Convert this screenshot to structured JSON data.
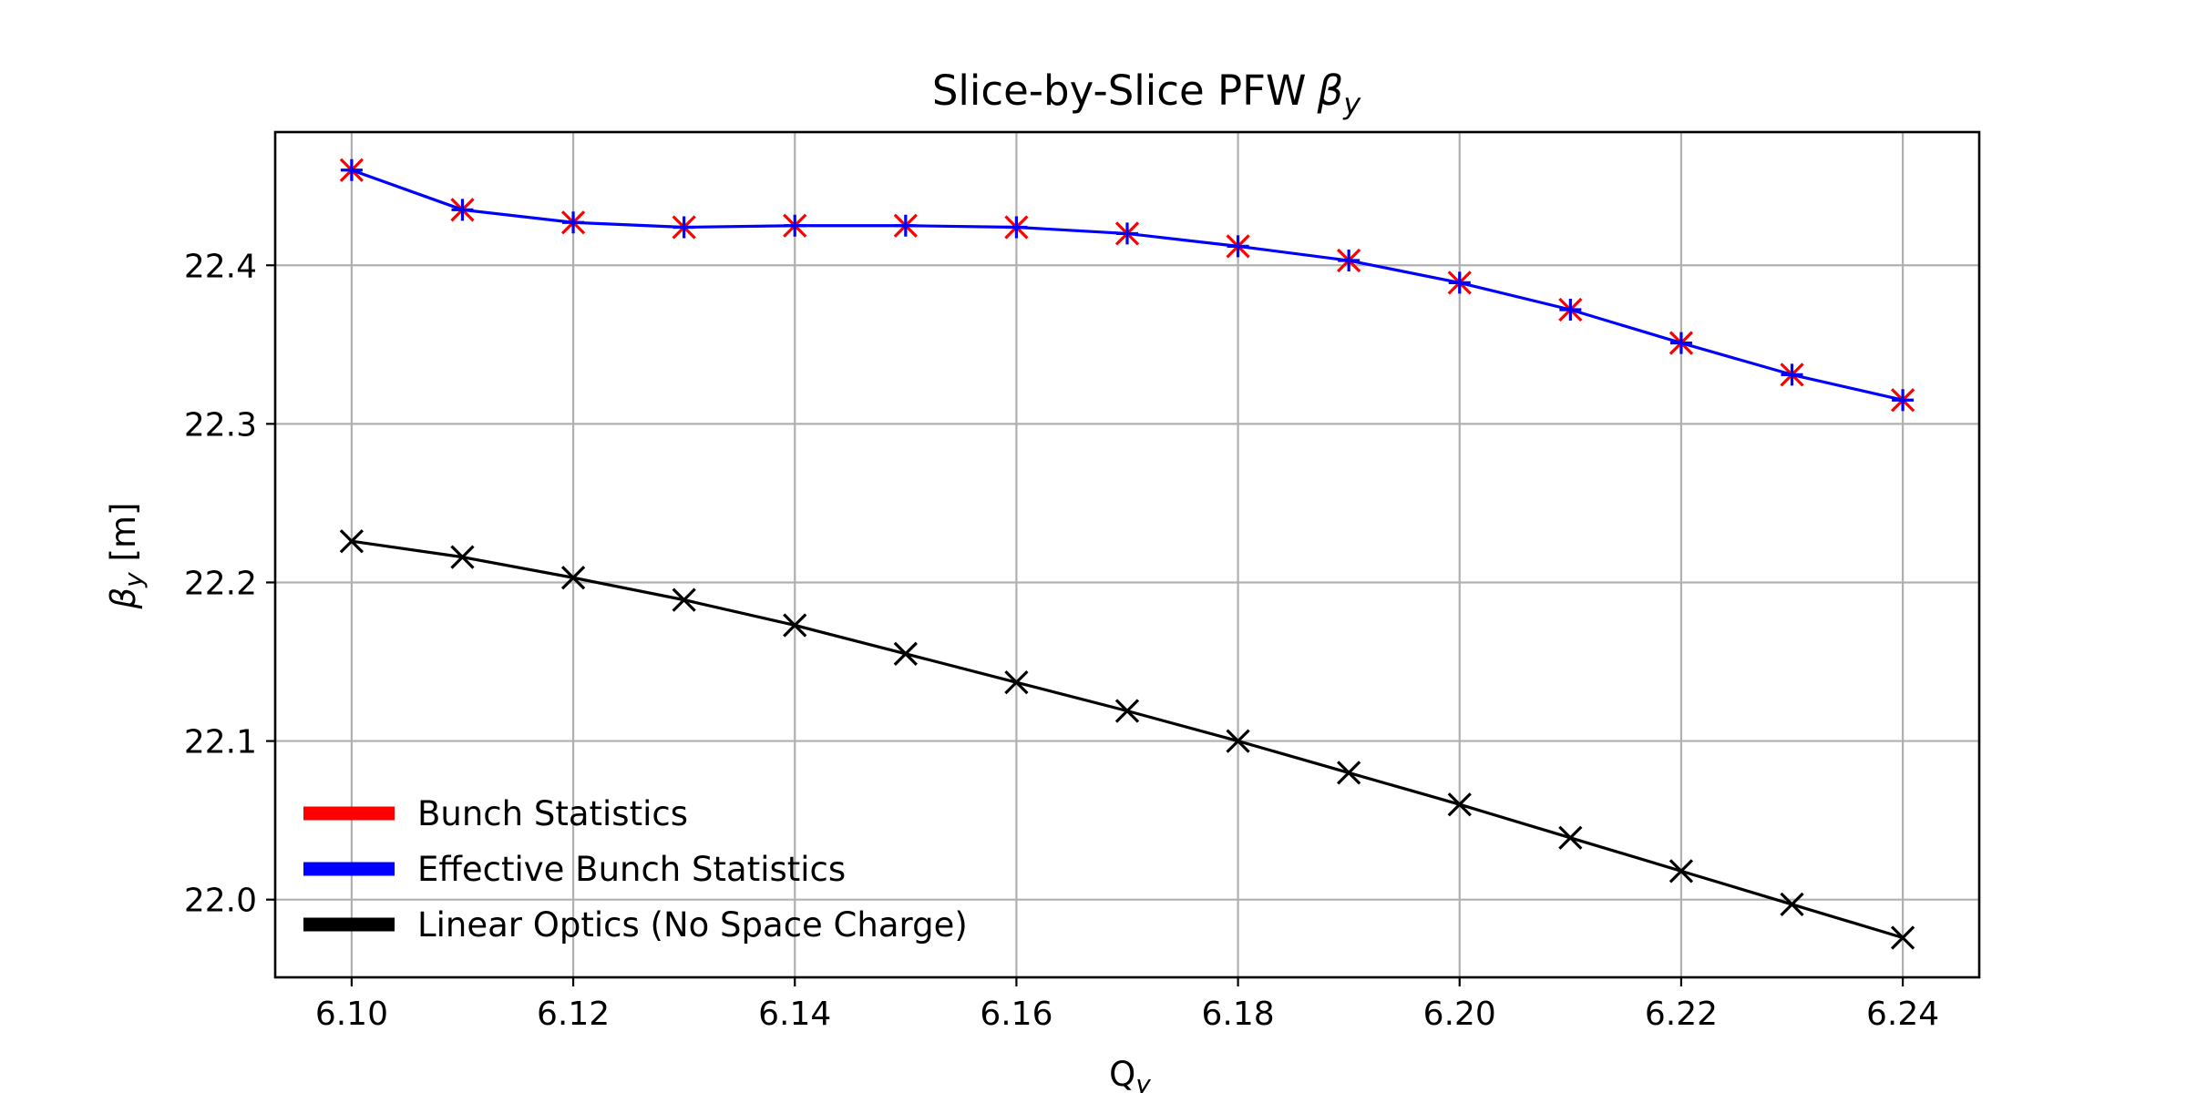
{
  "chart_data": {
    "type": "line",
    "title": "Slice-by-Slice PFW",
    "title_symbol": "β",
    "title_subscript": "y",
    "xlabel": "Q",
    "xlabel_subscript": "y",
    "ylabel_symbol": "β",
    "ylabel_subscript": "y",
    "ylabel_suffix": " [m]",
    "xlim": [
      6.0931,
      6.2469
    ],
    "ylim": [
      21.951,
      22.484
    ],
    "x_ticks": [
      "6.10",
      "6.12",
      "6.14",
      "6.16",
      "6.18",
      "6.20",
      "6.22",
      "6.24"
    ],
    "x_tick_values": [
      6.1,
      6.12,
      6.14,
      6.16,
      6.18,
      6.2,
      6.22,
      6.24
    ],
    "y_ticks": [
      "22.0",
      "22.1",
      "22.2",
      "22.3",
      "22.4"
    ],
    "y_tick_values": [
      22.0,
      22.1,
      22.2,
      22.3,
      22.4
    ],
    "grid": true,
    "legend_position": "lower-left",
    "x": [
      6.1,
      6.11,
      6.12,
      6.13,
      6.14,
      6.15,
      6.16,
      6.17,
      6.18,
      6.19,
      6.2,
      6.21,
      6.22,
      6.23,
      6.24
    ],
    "series": [
      {
        "name": "Bunch Statistics",
        "color": "#ff0000",
        "marker": "x",
        "line": false,
        "values": [
          22.46,
          22.435,
          22.427,
          22.424,
          22.425,
          22.425,
          22.424,
          22.42,
          22.412,
          22.403,
          22.389,
          22.372,
          22.351,
          22.331,
          22.315
        ]
      },
      {
        "name": "Effective Bunch Statistics",
        "color": "#0000ff",
        "marker": "+",
        "line": true,
        "values": [
          22.46,
          22.435,
          22.427,
          22.424,
          22.425,
          22.425,
          22.424,
          22.42,
          22.412,
          22.403,
          22.389,
          22.372,
          22.351,
          22.331,
          22.315
        ]
      },
      {
        "name": "Linear Optics (No Space Charge)",
        "color": "#000000",
        "marker": "x",
        "line": true,
        "values": [
          22.226,
          22.216,
          22.203,
          22.189,
          22.173,
          22.155,
          22.137,
          22.119,
          22.1,
          22.08,
          22.06,
          22.039,
          22.018,
          21.997,
          21.976
        ]
      }
    ]
  }
}
